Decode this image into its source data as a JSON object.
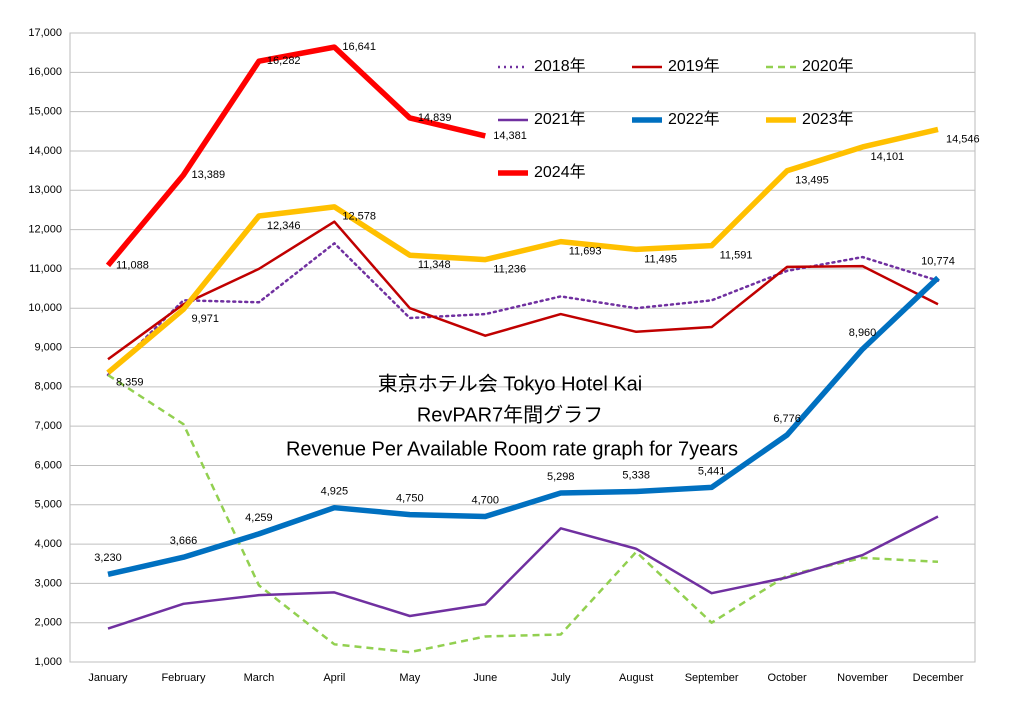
{
  "chart_data": {
    "type": "line",
    "title": "東京ホテル会  Tokyo Hotel Kai",
    "subtitle": "RevPAR7年間グラフ",
    "description": "Revenue Per Available Room rate graph for 7years",
    "categories": [
      "January",
      "February",
      "March",
      "April",
      "May",
      "June",
      "July",
      "August",
      "September",
      "October",
      "November",
      "December"
    ],
    "ylim": [
      1000,
      17000
    ],
    "yticks": [
      {
        "value": 1000,
        "label": "1,000"
      },
      {
        "value": 2000,
        "label": "2,000"
      },
      {
        "value": 3000,
        "label": "3,000"
      },
      {
        "value": 4000,
        "label": "4,000"
      },
      {
        "value": 5000,
        "label": "5,000"
      },
      {
        "value": 6000,
        "label": "6,000"
      },
      {
        "value": 7000,
        "label": "7,000"
      },
      {
        "value": 8000,
        "label": "8,000"
      },
      {
        "value": 9000,
        "label": "9,000"
      },
      {
        "value": 10000,
        "label": "10,000"
      },
      {
        "value": 11000,
        "label": "11,000"
      },
      {
        "value": 12000,
        "label": "12,000"
      },
      {
        "value": 13000,
        "label": "13,000"
      },
      {
        "value": 14000,
        "label": "14,000"
      },
      {
        "value": 15000,
        "label": "15,000"
      },
      {
        "value": 16000,
        "label": "16,000"
      },
      {
        "value": 17000,
        "label": "17,000"
      }
    ],
    "grid": true,
    "series": [
      {
        "name": "2018年",
        "color": "#7030a0",
        "line_style": "dotted",
        "line_weight": "thin",
        "values": [
          8300,
          10200,
          10150,
          11650,
          9750,
          9850,
          10300,
          10000,
          10200,
          10950,
          11300,
          10700
        ]
      },
      {
        "name": "2019年",
        "color": "#c00000",
        "line_style": "solid",
        "line_weight": "thin",
        "values": [
          8700,
          10100,
          11000,
          12200,
          10000,
          9300,
          9850,
          9400,
          9520,
          11050,
          11070,
          10100
        ]
      },
      {
        "name": "2020年",
        "color": "#92d050",
        "line_style": "dashed",
        "line_weight": "thin",
        "values": [
          8300,
          7050,
          2950,
          1450,
          1250,
          1650,
          1700,
          3800,
          2000,
          3200,
          3650,
          3550
        ]
      },
      {
        "name": "2021年",
        "color": "#7030a0",
        "line_style": "solid",
        "line_weight": "thin",
        "values": [
          1850,
          2480,
          2700,
          2770,
          2170,
          2470,
          4400,
          3880,
          2750,
          3150,
          3720,
          4700
        ]
      },
      {
        "name": "2022年",
        "color": "#0070c0",
        "line_style": "solid",
        "line_weight": "thick",
        "values": [
          3230,
          3666,
          4259,
          4925,
          4750,
          4700,
          5298,
          5338,
          5441,
          6776,
          8960,
          10774
        ],
        "value_labels": [
          "3,230",
          "3,666",
          "4,259",
          "4,925",
          "4,750",
          "4,700",
          "5,298",
          "5,338",
          "5,441",
          "6,776",
          "8,960",
          "10,774"
        ]
      },
      {
        "name": "2023年",
        "color": "#ffc000",
        "line_style": "solid",
        "line_weight": "thick",
        "values": [
          8359,
          9971,
          12346,
          12578,
          11348,
          11236,
          11693,
          11495,
          11591,
          13495,
          14101,
          14546
        ],
        "value_labels": [
          "8,359",
          "9,971",
          "12,346",
          "12,578",
          "11,348",
          "11,236",
          "11,693",
          "11,495",
          "11,591",
          "13,495",
          "14,101",
          "14,546"
        ]
      },
      {
        "name": "2024年",
        "color": "#ff0000",
        "line_style": "solid",
        "line_weight": "thick",
        "values": [
          11088,
          13389,
          16282,
          16641,
          14839,
          14381,
          null,
          null,
          null,
          null,
          null,
          null
        ],
        "value_labels": [
          "11,088",
          "13,389",
          "16,282",
          "16,641",
          "14,839",
          "14,381",
          null,
          null,
          null,
          null,
          null,
          null
        ]
      }
    ]
  }
}
